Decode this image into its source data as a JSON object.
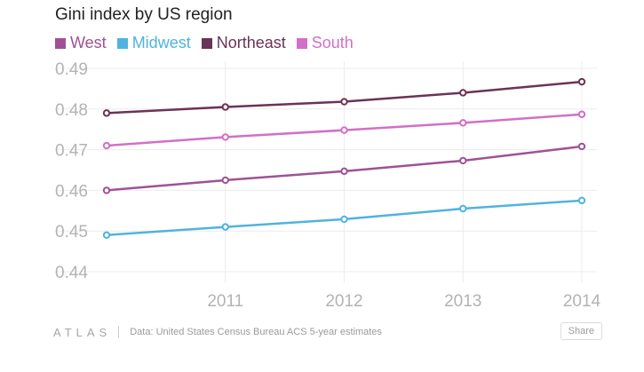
{
  "chart_data": {
    "type": "line",
    "title": "Gini index by US region",
    "xlabel": "",
    "ylabel": "",
    "x": [
      2010,
      2011,
      2012,
      2013,
      2014
    ],
    "x_tick_labels": [
      "2011",
      "2012",
      "2013",
      "2014"
    ],
    "ylim": [
      0.44,
      0.49
    ],
    "y_ticks": [
      "0.49",
      "0.48",
      "0.47",
      "0.46",
      "0.45",
      "0.44"
    ],
    "grid": true,
    "legend_placement": "top-left",
    "series": [
      {
        "name": "West",
        "color": "#a05195",
        "values": [
          0.46,
          0.4625,
          0.4647,
          0.4673,
          0.4708
        ]
      },
      {
        "name": "Midwest",
        "color": "#4fb3e0",
        "values": [
          0.449,
          0.451,
          0.4529,
          0.4555,
          0.4575
        ]
      },
      {
        "name": "Northeast",
        "color": "#6b3355",
        "values": [
          0.479,
          0.4805,
          0.4818,
          0.484,
          0.4867
        ]
      },
      {
        "name": "South",
        "color": "#d36fc6",
        "values": [
          0.471,
          0.4731,
          0.4748,
          0.4766,
          0.4787
        ]
      }
    ]
  },
  "footer": {
    "logo": "ATLAS",
    "source": "Data: United States Census Bureau ACS 5-year estimates",
    "share_label": "Share"
  }
}
